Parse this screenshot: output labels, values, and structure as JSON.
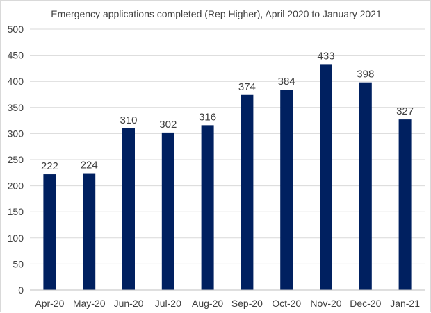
{
  "chart_data": {
    "type": "bar",
    "title": "Emergency applications completed (Rep Higher), April 2020 to January 2021",
    "xlabel": "",
    "ylabel": "",
    "categories": [
      "Apr-20",
      "May-20",
      "Jun-20",
      "Jul-20",
      "Aug-20",
      "Sep-20",
      "Oct-20",
      "Nov-20",
      "Dec-20",
      "Jan-21"
    ],
    "values": [
      222,
      224,
      310,
      302,
      316,
      374,
      384,
      433,
      398,
      327
    ],
    "ylim": [
      0,
      500
    ],
    "yticks": [
      0,
      50,
      100,
      150,
      200,
      250,
      300,
      350,
      400,
      450,
      500
    ],
    "grid": true,
    "legend": "none",
    "bar_color": "#002060",
    "data_labels": true
  }
}
